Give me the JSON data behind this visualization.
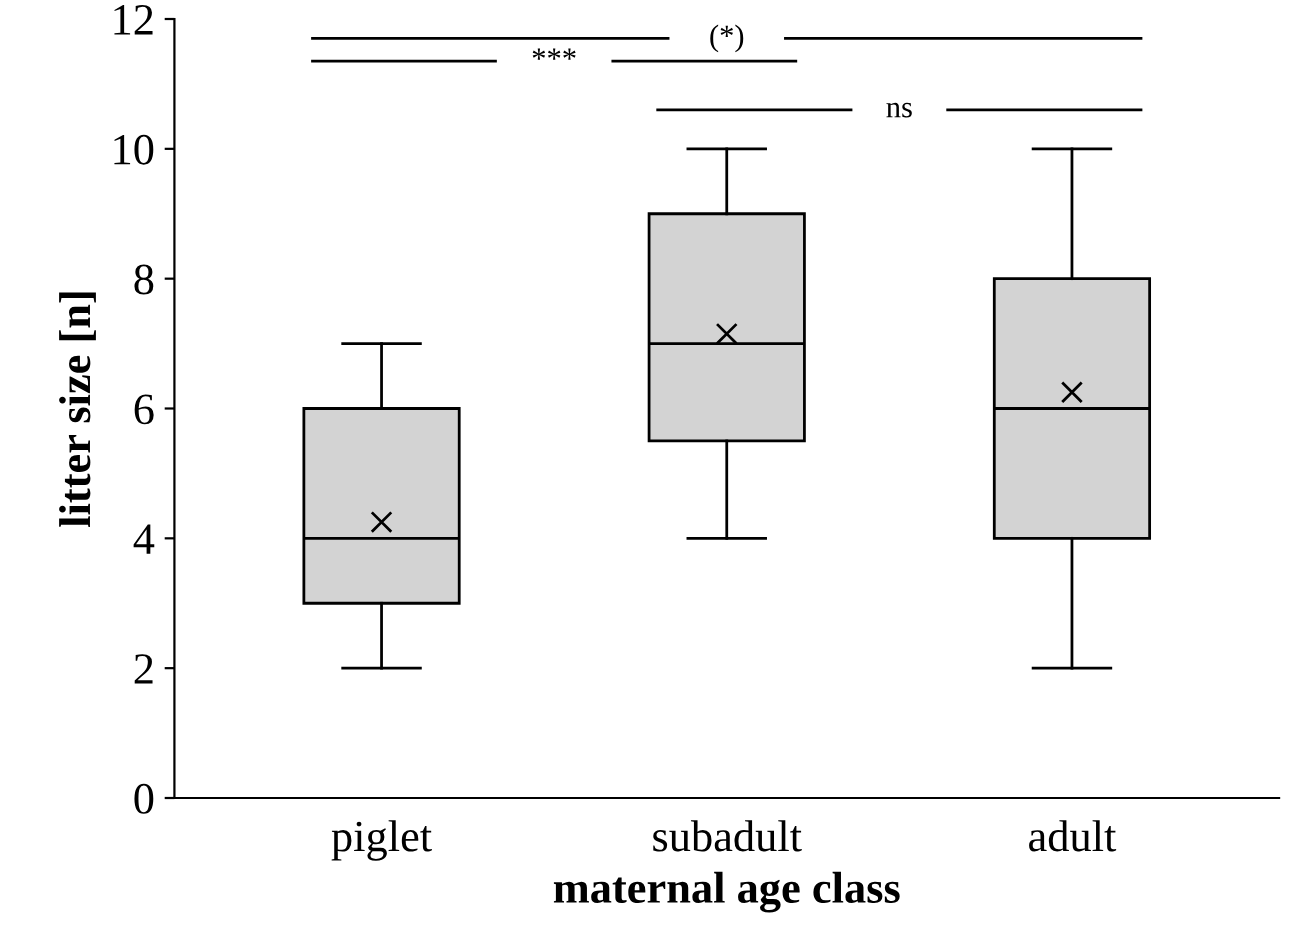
{
  "chart_data": {
    "type": "box",
    "xlabel": "maternal age class",
    "ylabel": "litter size [n]",
    "categories": [
      "piglet",
      "subadult",
      "adult"
    ],
    "boxes": [
      {
        "low": 2,
        "q1": 3,
        "median": 4,
        "q3": 6,
        "high": 7,
        "mean": 4.25
      },
      {
        "low": 4,
        "q1": 5.5,
        "median": 7,
        "q3": 9,
        "high": 10,
        "mean": 7.15
      },
      {
        "low": 2,
        "q1": 4,
        "median": 6,
        "q3": 8,
        "high": 10,
        "mean": 6.25
      }
    ],
    "color": "#d3d3d3",
    "ylim": [
      0,
      12
    ],
    "yticks": [
      0,
      2,
      4,
      6,
      8,
      10,
      12
    ],
    "grid": false,
    "annotations": [
      "(*)",
      "***",
      "ns"
    ]
  }
}
